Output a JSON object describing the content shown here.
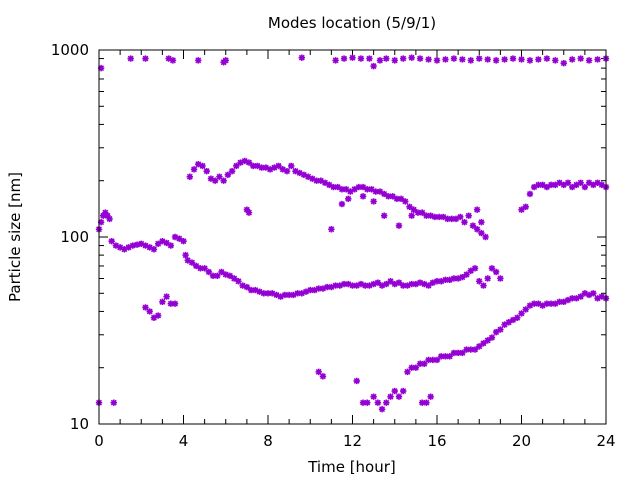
{
  "chart_data": {
    "type": "scatter",
    "title": "Modes location (5/9/1)",
    "xlabel": "Time [hour]",
    "ylabel": "Particle size [nm]",
    "xlim": [
      0,
      24
    ],
    "ylim": [
      10,
      1000
    ],
    "y_scale": "log",
    "grid": false,
    "legend": "none",
    "x_ticks": [
      0,
      4,
      8,
      12,
      16,
      20,
      24
    ],
    "x_tick_labels": [
      "0",
      "4",
      "8",
      "12",
      "16",
      "20",
      "24"
    ],
    "y_ticks": [
      10,
      100,
      1000
    ],
    "y_tick_labels": [
      "10",
      "100",
      "1000"
    ],
    "marker_color": "#9400D3",
    "marker": "asterisk",
    "series": [
      {
        "mode": "coarse",
        "points": [
          [
            0.1,
            800
          ],
          [
            1.5,
            900
          ],
          [
            2.2,
            900
          ],
          [
            3.3,
            900
          ],
          [
            3.5,
            880
          ],
          [
            4.7,
            880
          ],
          [
            5.9,
            860
          ],
          [
            6.0,
            880
          ],
          [
            9.6,
            910
          ],
          [
            11.2,
            880
          ],
          [
            11.6,
            900
          ],
          [
            12.0,
            910
          ],
          [
            12.4,
            900
          ],
          [
            12.8,
            900
          ],
          [
            13.0,
            820
          ],
          [
            13.3,
            880
          ],
          [
            13.6,
            900
          ],
          [
            14.0,
            880
          ],
          [
            14.4,
            900
          ],
          [
            14.8,
            910
          ],
          [
            15.2,
            900
          ],
          [
            15.6,
            890
          ],
          [
            16.0,
            880
          ],
          [
            16.4,
            890
          ],
          [
            16.8,
            900
          ],
          [
            17.2,
            890
          ],
          [
            17.6,
            880
          ],
          [
            18.0,
            900
          ],
          [
            18.4,
            890
          ],
          [
            18.8,
            880
          ],
          [
            19.2,
            890
          ],
          [
            19.6,
            900
          ],
          [
            20.0,
            890
          ],
          [
            20.4,
            880
          ],
          [
            20.8,
            890
          ],
          [
            21.2,
            900
          ],
          [
            21.6,
            880
          ],
          [
            22.0,
            850
          ],
          [
            22.4,
            890
          ],
          [
            22.8,
            900
          ],
          [
            23.2,
            880
          ],
          [
            23.6,
            890
          ],
          [
            24.0,
            900
          ]
        ]
      },
      {
        "mode": "upper-accumulation",
        "points": [
          [
            0.0,
            110
          ],
          [
            0.1,
            120
          ],
          [
            0.2,
            130
          ],
          [
            0.3,
            135
          ],
          [
            0.4,
            130
          ],
          [
            0.5,
            125
          ],
          [
            4.3,
            210
          ],
          [
            4.5,
            230
          ],
          [
            4.7,
            245
          ],
          [
            4.9,
            240
          ],
          [
            5.1,
            225
          ],
          [
            5.3,
            205
          ],
          [
            5.5,
            200
          ],
          [
            5.7,
            210
          ],
          [
            5.9,
            200
          ],
          [
            6.1,
            215
          ],
          [
            6.3,
            225
          ],
          [
            6.5,
            240
          ],
          [
            6.7,
            250
          ],
          [
            6.9,
            255
          ],
          [
            7.1,
            250
          ],
          [
            7.3,
            240
          ],
          [
            7.5,
            240
          ],
          [
            7.7,
            235
          ],
          [
            7.9,
            235
          ],
          [
            8.1,
            230
          ],
          [
            8.3,
            235
          ],
          [
            8.5,
            240
          ],
          [
            8.7,
            230
          ],
          [
            8.9,
            225
          ],
          [
            9.1,
            240
          ],
          [
            9.3,
            225
          ],
          [
            9.5,
            220
          ],
          [
            9.7,
            215
          ],
          [
            9.9,
            210
          ],
          [
            10.1,
            205
          ],
          [
            10.3,
            200
          ],
          [
            10.5,
            200
          ],
          [
            10.7,
            195
          ],
          [
            10.9,
            190
          ],
          [
            11.1,
            185
          ],
          [
            11.3,
            185
          ],
          [
            11.5,
            180
          ],
          [
            11.7,
            180
          ],
          [
            11.9,
            175
          ],
          [
            12.1,
            180
          ],
          [
            12.3,
            185
          ],
          [
            12.5,
            185
          ],
          [
            12.7,
            180
          ],
          [
            12.9,
            180
          ],
          [
            13.1,
            175
          ],
          [
            13.3,
            175
          ],
          [
            13.5,
            170
          ],
          [
            13.7,
            165
          ],
          [
            13.9,
            165
          ],
          [
            14.1,
            160
          ],
          [
            14.3,
            160
          ],
          [
            14.5,
            155
          ],
          [
            14.7,
            145
          ],
          [
            14.9,
            140
          ],
          [
            15.1,
            135
          ],
          [
            15.3,
            135
          ],
          [
            15.5,
            130
          ],
          [
            15.7,
            130
          ],
          [
            15.9,
            128
          ],
          [
            16.1,
            128
          ],
          [
            16.3,
            128
          ],
          [
            16.5,
            125
          ],
          [
            16.7,
            125
          ],
          [
            16.9,
            125
          ],
          [
            17.1,
            128
          ],
          [
            17.3,
            120
          ],
          [
            17.5,
            130
          ],
          [
            17.7,
            115
          ],
          [
            17.9,
            110
          ],
          [
            18.1,
            105
          ],
          [
            18.3,
            100
          ],
          [
            7.0,
            140
          ],
          [
            7.1,
            135
          ],
          [
            11.0,
            110
          ],
          [
            11.5,
            150
          ],
          [
            11.8,
            160
          ],
          [
            12.5,
            165
          ],
          [
            13.0,
            155
          ],
          [
            13.5,
            130
          ],
          [
            14.2,
            115
          ],
          [
            14.8,
            130
          ],
          [
            17.9,
            140
          ],
          [
            18.1,
            120
          ],
          [
            20.0,
            140
          ],
          [
            20.2,
            145
          ],
          [
            20.4,
            170
          ],
          [
            20.6,
            185
          ],
          [
            20.8,
            190
          ],
          [
            21.0,
            190
          ],
          [
            21.2,
            185
          ],
          [
            21.4,
            190
          ],
          [
            21.6,
            190
          ],
          [
            21.8,
            195
          ],
          [
            22.0,
            190
          ],
          [
            22.2,
            195
          ],
          [
            22.4,
            185
          ],
          [
            22.6,
            190
          ],
          [
            22.8,
            195
          ],
          [
            23.0,
            185
          ],
          [
            23.2,
            195
          ],
          [
            23.4,
            190
          ],
          [
            23.6,
            195
          ],
          [
            23.8,
            190
          ],
          [
            24.0,
            185
          ]
        ]
      },
      {
        "mode": "lower-accumulation",
        "points": [
          [
            0.6,
            95
          ],
          [
            0.8,
            90
          ],
          [
            1.0,
            88
          ],
          [
            1.2,
            86
          ],
          [
            1.4,
            88
          ],
          [
            1.6,
            90
          ],
          [
            1.8,
            91
          ],
          [
            2.0,
            92
          ],
          [
            2.2,
            90
          ],
          [
            2.4,
            88
          ],
          [
            2.6,
            86
          ],
          [
            2.8,
            92
          ],
          [
            3.0,
            95
          ],
          [
            3.2,
            93
          ],
          [
            3.4,
            90
          ],
          [
            3.6,
            100
          ],
          [
            3.8,
            98
          ],
          [
            4.0,
            95
          ],
          [
            4.1,
            80
          ],
          [
            4.2,
            75
          ],
          [
            4.4,
            73
          ],
          [
            4.6,
            70
          ],
          [
            4.8,
            68
          ],
          [
            5.0,
            68
          ],
          [
            5.2,
            65
          ],
          [
            5.4,
            62
          ],
          [
            5.6,
            62
          ],
          [
            5.8,
            65
          ],
          [
            6.0,
            63
          ],
          [
            6.2,
            62
          ],
          [
            6.4,
            60
          ],
          [
            6.6,
            58
          ],
          [
            6.8,
            55
          ],
          [
            7.0,
            54
          ],
          [
            7.2,
            52
          ],
          [
            7.4,
            52
          ],
          [
            7.6,
            51
          ],
          [
            7.8,
            50
          ],
          [
            8.0,
            50
          ],
          [
            8.2,
            50
          ],
          [
            8.4,
            49
          ],
          [
            8.6,
            48
          ],
          [
            8.8,
            49
          ],
          [
            9.0,
            49
          ],
          [
            9.2,
            49
          ],
          [
            9.4,
            50
          ],
          [
            9.6,
            50
          ],
          [
            9.8,
            51
          ],
          [
            10.0,
            52
          ],
          [
            10.2,
            52
          ],
          [
            10.4,
            53
          ],
          [
            10.6,
            53
          ],
          [
            10.8,
            54
          ],
          [
            11.0,
            54
          ],
          [
            11.2,
            55
          ],
          [
            11.4,
            55
          ],
          [
            11.6,
            56
          ],
          [
            11.8,
            56
          ],
          [
            12.0,
            55
          ],
          [
            12.2,
            55
          ],
          [
            12.4,
            56
          ],
          [
            12.6,
            55
          ],
          [
            12.8,
            55
          ],
          [
            13.0,
            56
          ],
          [
            13.2,
            57
          ],
          [
            13.4,
            55
          ],
          [
            13.6,
            56
          ],
          [
            13.8,
            58
          ],
          [
            14.0,
            56
          ],
          [
            14.2,
            57
          ],
          [
            14.4,
            55
          ],
          [
            14.6,
            55
          ],
          [
            14.8,
            56
          ],
          [
            15.0,
            56
          ],
          [
            15.2,
            57
          ],
          [
            15.4,
            56
          ],
          [
            15.6,
            55
          ],
          [
            15.8,
            57
          ],
          [
            16.0,
            58
          ],
          [
            16.2,
            58
          ],
          [
            16.4,
            59
          ],
          [
            16.6,
            59
          ],
          [
            16.8,
            60
          ],
          [
            17.0,
            60
          ],
          [
            17.2,
            61
          ],
          [
            17.4,
            63
          ],
          [
            17.6,
            66
          ],
          [
            17.8,
            68
          ],
          [
            18.0,
            58
          ],
          [
            18.2,
            55
          ],
          [
            18.4,
            60
          ],
          [
            18.6,
            68
          ],
          [
            18.8,
            65
          ],
          [
            19.0,
            60
          ],
          [
            2.2,
            42
          ],
          [
            2.4,
            40
          ],
          [
            2.6,
            37
          ],
          [
            2.8,
            38
          ],
          [
            3.0,
            45
          ],
          [
            3.2,
            48
          ],
          [
            3.4,
            44
          ],
          [
            3.6,
            44
          ]
        ]
      },
      {
        "mode": "nucleation",
        "points": [
          [
            0.0,
            13
          ],
          [
            0.7,
            13
          ],
          [
            10.4,
            19
          ],
          [
            10.6,
            18
          ],
          [
            12.2,
            17
          ],
          [
            12.5,
            13
          ],
          [
            12.7,
            13
          ],
          [
            13.0,
            14
          ],
          [
            13.2,
            13
          ],
          [
            13.4,
            12
          ],
          [
            13.6,
            13
          ],
          [
            13.8,
            14
          ],
          [
            14.0,
            15
          ],
          [
            14.2,
            14
          ],
          [
            14.4,
            15
          ],
          [
            14.6,
            19
          ],
          [
            14.8,
            20
          ],
          [
            15.0,
            20
          ],
          [
            15.2,
            21
          ],
          [
            15.4,
            21
          ],
          [
            15.6,
            22
          ],
          [
            15.8,
            22
          ],
          [
            16.0,
            22
          ],
          [
            16.2,
            23
          ],
          [
            16.4,
            23
          ],
          [
            16.6,
            23
          ],
          [
            16.8,
            24
          ],
          [
            17.0,
            24
          ],
          [
            17.2,
            24
          ],
          [
            17.4,
            25
          ],
          [
            17.6,
            25
          ],
          [
            17.8,
            25
          ],
          [
            18.0,
            26
          ],
          [
            18.2,
            27
          ],
          [
            18.4,
            28
          ],
          [
            18.6,
            29
          ],
          [
            18.8,
            31
          ],
          [
            19.0,
            32
          ],
          [
            19.2,
            34
          ],
          [
            19.4,
            35
          ],
          [
            19.6,
            36
          ],
          [
            19.8,
            37
          ],
          [
            20.0,
            39
          ],
          [
            20.2,
            41
          ],
          [
            20.4,
            43
          ],
          [
            20.6,
            44
          ],
          [
            20.8,
            44
          ],
          [
            21.0,
            43
          ],
          [
            21.2,
            44
          ],
          [
            21.4,
            44
          ],
          [
            21.6,
            44
          ],
          [
            21.8,
            45
          ],
          [
            22.0,
            45
          ],
          [
            22.2,
            46
          ],
          [
            22.4,
            47
          ],
          [
            22.6,
            47
          ],
          [
            22.8,
            48
          ],
          [
            23.0,
            50
          ],
          [
            23.2,
            49
          ],
          [
            23.4,
            50
          ],
          [
            23.6,
            47
          ],
          [
            23.8,
            48
          ],
          [
            24.0,
            47
          ],
          [
            15.3,
            13
          ],
          [
            15.5,
            13
          ],
          [
            15.7,
            14
          ]
        ]
      }
    ]
  }
}
